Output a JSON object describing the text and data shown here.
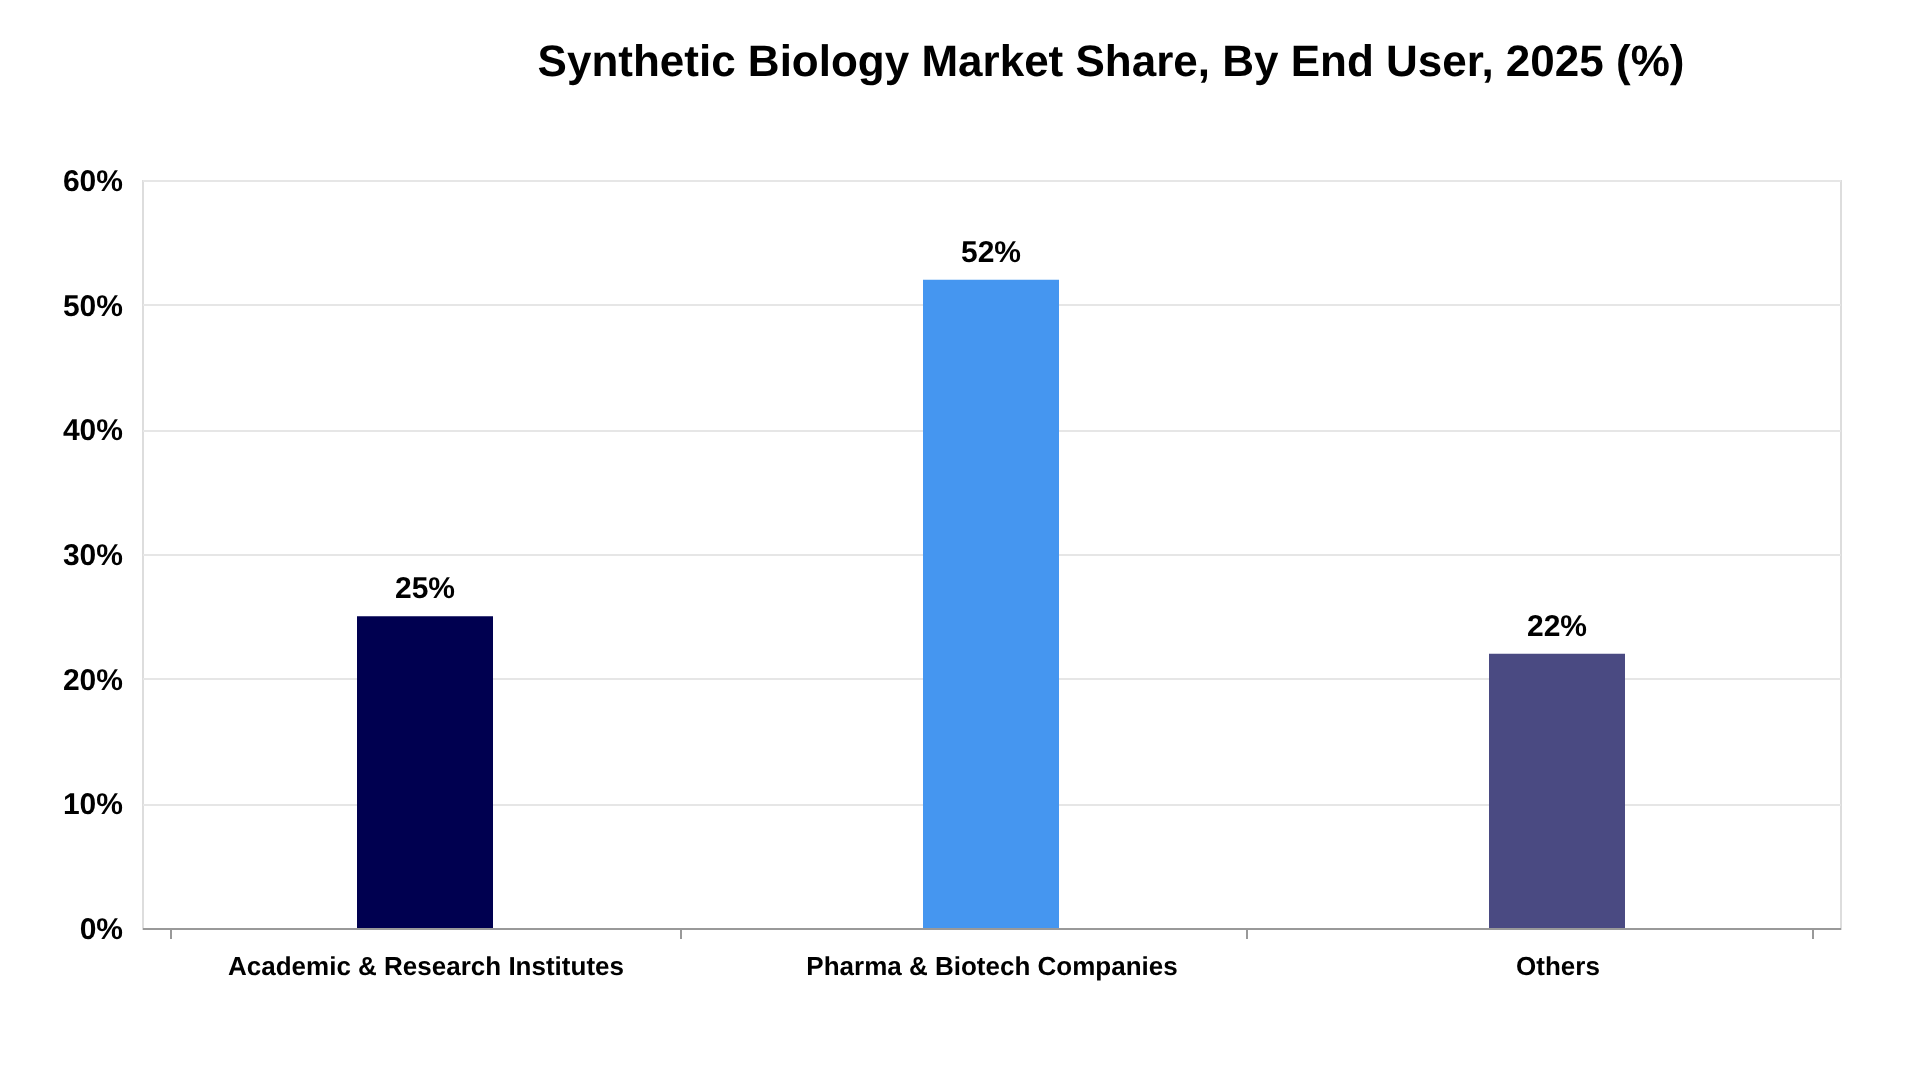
{
  "chart_data": {
    "type": "bar",
    "title": "Synthetic Biology Market Share, By End User, 2025 (%)",
    "categories": [
      "Academic & Research Institutes",
      "Pharma & Biotech Companies",
      "Others"
    ],
    "values": [
      25,
      52,
      22
    ],
    "colors": [
      "#000050",
      "#4596f0",
      "#4a4a82"
    ],
    "ylim": [
      0,
      60
    ],
    "yticks": [
      {
        "value": 0,
        "label": "0%"
      },
      {
        "value": 10,
        "label": "10%"
      },
      {
        "value": 20,
        "label": "20%"
      },
      {
        "value": 30,
        "label": "30%"
      },
      {
        "value": 40,
        "label": "40%"
      },
      {
        "value": 50,
        "label": "50%"
      },
      {
        "value": 60,
        "label": "60%"
      }
    ],
    "value_labels": [
      "25%",
      "52%",
      "22%"
    ],
    "grid": "y"
  }
}
